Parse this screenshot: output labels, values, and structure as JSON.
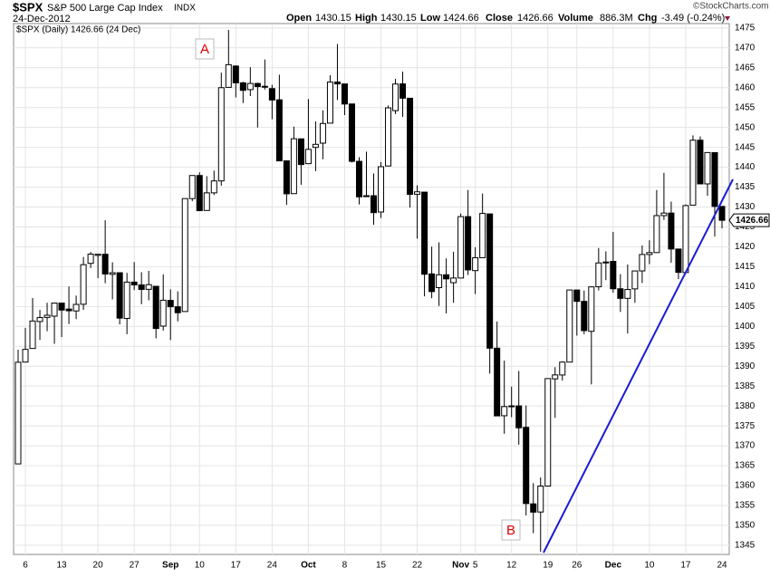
{
  "header": {
    "symbol": "$SPX",
    "name": "S&P 500 Large Cap Index",
    "exchange": "INDX",
    "date": "24-Dec-2012",
    "open_label": "Open",
    "open": "1430.15",
    "high_label": "High",
    "high": "1430.15",
    "low_label": "Low",
    "low": "1424.66",
    "close_label": "Close",
    "close": "1426.66",
    "volume_label": "Volume",
    "volume": "886.3M",
    "chg_label": "Chg",
    "chg": "-3.49 (-0.24%)",
    "credit": "©StockCharts.com",
    "legend": "$SPX (Daily) 1426.66 (24 Dec)"
  },
  "chart_data": {
    "type": "candlestick",
    "up_color": "#ffffff",
    "down_color": "#000000",
    "grid": true,
    "annotations": [
      "A",
      "B"
    ],
    "categories": [
      null,
      "6",
      null,
      null,
      null,
      null,
      "13",
      null,
      null,
      null,
      null,
      "20",
      null,
      null,
      null,
      null,
      "27",
      null,
      null,
      null,
      null,
      "Sep",
      null,
      null,
      null,
      "10",
      null,
      null,
      null,
      null,
      "17",
      null,
      null,
      null,
      null,
      "24",
      null,
      null,
      null,
      null,
      "Oct",
      null,
      null,
      null,
      null,
      "8",
      null,
      null,
      null,
      null,
      "15",
      null,
      null,
      null,
      null,
      "22",
      null,
      null,
      null,
      null,
      null,
      "Nov",
      null,
      "5",
      null,
      null,
      null,
      null,
      "12",
      null,
      null,
      null,
      null,
      "19",
      null,
      null,
      null,
      "26",
      null,
      null,
      null,
      null,
      "Dec",
      null,
      null,
      null,
      null,
      "10",
      null,
      null,
      null,
      null,
      "17",
      null,
      null,
      null,
      null,
      "24"
    ],
    "open": [
      1365.45,
      1391.04,
      1394.46,
      1401.23,
      1402.26,
      1402.58,
      1405.87,
      1404.36,
      1403.89,
      1405.57,
      1415.84,
      1417.85,
      1418.13,
      1413.09,
      1413.49,
      1401.99,
      1411.13,
      1410.44,
      1409.32,
      1410.08,
      1400.07,
      1406.54,
      1404.94,
      1403.74,
      1432.12,
      1437.92,
      1429.13,
      1433.56,
      1436.56,
      1460.07,
      1465.42,
      1461.19,
      1459.5,
      1461.05,
      1460.34,
      1459.76,
      1456.94,
      1441.6,
      1433.36,
      1447.13,
      1440.9,
      1444.99,
      1446.05,
      1451.08,
      1461.4,
      1460.93,
      1455.9,
      1441.48,
      1432.82,
      1432.84,
      1428.75,
      1440.31,
      1454.22,
      1460.94,
      1457.34,
      1433.21,
      1433.74,
      1413.2,
      1409.74,
      1412.97,
      1410.99,
      1412.16,
      1427.59,
      1414.02,
      1417.26,
      1428.27,
      1394.53,
      1377.55,
      1379.86,
      1380.03,
      1374.64,
      1355.41,
      1353.36,
      1359.88,
      1386.82,
      1387.79,
      1391.03,
      1409.15,
      1406.29,
      1398.77,
      1409.96,
      1415.95,
      1416.34,
      1409.46,
      1407.05,
      1409.43,
      1413.95,
      1418.07,
      1418.55,
      1427.84,
      1428.48,
      1419.45,
      1413.54,
      1430.47,
      1446.79,
      1435.81,
      1443.67,
      1430.15
    ],
    "high": [
      1394.16,
      1399.63,
      1407.14,
      1404.14,
      1405.95,
      1405.98,
      1405.87,
      1410.03,
      1407.73,
      1417.44,
      1418.71,
      1418.13,
      1426.68,
      1416.12,
      1413.49,
      1413.46,
      1416.17,
      1413.63,
      1413.95,
      1410.08,
      1413.09,
      1409.31,
      1408.81,
      1432.12,
      1437.92,
      1438.74,
      1437.76,
      1439.15,
      1463.76,
      1474.51,
      1465.63,
      1461.47,
      1465.15,
      1461.23,
      1467.07,
      1460.72,
      1463.24,
      1441.6,
      1450.2,
      1447.13,
      1457.14,
      1451.52,
      1454.3,
      1463.14,
      1470.96,
      1460.93,
      1455.9,
      1442.52,
      1443.9,
      1438.43,
      1441.31,
      1455.51,
      1462.2,
      1464.02,
      1457.34,
      1435.46,
      1433.74,
      1420.04,
      1421.12,
      1417.09,
      1418.76,
      1428.35,
      1434.27,
      1419.9,
      1433.38,
      1428.27,
      1401.23,
      1391.39,
      1384.87,
      1388.81,
      1380.13,
      1360.62,
      1362.03,
      1386.89,
      1389.77,
      1391.25,
      1409.16,
      1409.15,
      1409.01,
      1410.03,
      1419.7,
      1418.86,
      1423.73,
      1413.14,
      1415.56,
      1413.95,
      1420.34,
      1421.64,
      1434.27,
      1438.59,
      1431.36,
      1419.45,
      1430.67,
      1448,
      1447.75,
      1443.7,
      1443.67,
      1430.15
    ],
    "low": [
      1365.45,
      1391.04,
      1394.46,
      1396.59,
      1398.8,
      1395.62,
      1397.32,
      1400.6,
      1401.83,
      1404.15,
      1414.67,
      1412.12,
      1410.86,
      1406.78,
      1400.5,
      1398.04,
      1409.11,
      1405.59,
      1406.57,
      1397.01,
      1398.96,
      1396.56,
      1401.25,
      1403.74,
      1431.45,
      1428.98,
      1429.13,
      1432.99,
      1435.34,
      1460.07,
      1457.55,
      1456.13,
      1457.88,
      1449.98,
      1459.51,
      1452.06,
      1441.59,
      1430.53,
      1433.36,
      1435.6,
      1440.9,
      1439.01,
      1441.99,
      1451.08,
      1456.89,
      1453.1,
      1441.18,
      1430.64,
      1432.82,
      1425.53,
      1427.24,
      1440.31,
      1453.35,
      1452.63,
      1429.85,
      1422.06,
      1407.56,
      1407.1,
      1405.14,
      1403.28,
      1405.95,
      1412.16,
      1412.91,
      1408.13,
      1417.26,
      1388.14,
      1377.51,
      1373.03,
      1377.19,
      1370.29,
      1352.5,
      1348.05,
      1343.35,
      1359.88,
      1377.04,
      1386.39,
      1391.03,
      1397.68,
      1398.03,
      1385.43,
      1409.04,
      1411.63,
      1408.46,
      1403.65,
      1398.23,
      1405.93,
      1410.9,
      1415.64,
      1418.55,
      1426.76,
      1416,
      1411.88,
      1413.54,
      1430.47,
      1435.8,
      1432.82,
      1422.58,
      1424.66
    ],
    "close": [
      1390.99,
      1394.23,
      1401.35,
      1402.22,
      1402.8,
      1405.87,
      1404.11,
      1403.93,
      1405.53,
      1415.51,
      1418.16,
      1418.13,
      1413.17,
      1413.49,
      1402.08,
      1411.13,
      1410.44,
      1409.3,
      1410.49,
      1399.48,
      1406.58,
      1404.94,
      1403.44,
      1432.12,
      1437.92,
      1429.08,
      1433.56,
      1436.56,
      1459.99,
      1465.77,
      1461.19,
      1459.32,
      1461.05,
      1460.26,
      1460.15,
      1456.89,
      1441.59,
      1433.32,
      1447.15,
      1440.67,
      1444.49,
      1445.75,
      1450.99,
      1461.4,
      1460.93,
      1455.88,
      1441.48,
      1432.56,
      1432.84,
      1428.59,
      1440.13,
      1454.92,
      1460.91,
      1457.34,
      1433.19,
      1433.82,
      1413.11,
      1408.75,
      1412.97,
      1411.94,
      1412.16,
      1427.59,
      1414.2,
      1417.26,
      1428.39,
      1394.53,
      1377.51,
      1379.85,
      1380.03,
      1374.53,
      1355.49,
      1353.33,
      1359.88,
      1386.89,
      1387.81,
      1391.03,
      1409.15,
      1406.29,
      1398.94,
      1409.93,
      1415.95,
      1416.18,
      1409.46,
      1407.05,
      1409.28,
      1413.94,
      1418.07,
      1418.55,
      1427.84,
      1428.48,
      1419.45,
      1413.58,
      1430.36,
      1446.79,
      1435.81,
      1443.69,
      1430.15,
      1426.66
    ],
    "ylim": [
      1342.7,
      1476.1
    ],
    "yticks": [
      1345,
      1350,
      1355,
      1360,
      1365,
      1370,
      1375,
      1380,
      1385,
      1390,
      1395,
      1400,
      1405,
      1410,
      1415,
      1420,
      1425,
      1430,
      1435,
      1440,
      1445,
      1450,
      1455,
      1460,
      1465,
      1470,
      1475
    ]
  }
}
